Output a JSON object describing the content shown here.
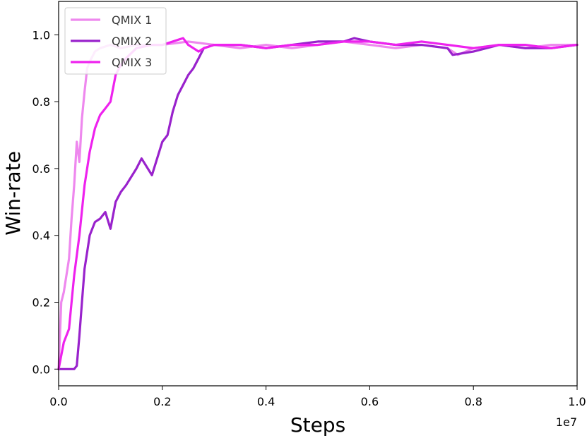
{
  "chart_data": {
    "type": "line",
    "title": "",
    "xlabel": "Steps",
    "ylabel": "Win-rate",
    "x_multiplier_label": "1e7",
    "xlim": [
      0.0,
      1.0
    ],
    "ylim": [
      -0.05,
      1.1
    ],
    "xticks": [
      0.0,
      0.2,
      0.4,
      0.6,
      0.8,
      1.0
    ],
    "xtick_labels": [
      "0.0",
      "0.2",
      "0.4",
      "0.6",
      "0.8",
      "1.0"
    ],
    "yticks": [
      0.0,
      0.2,
      0.4,
      0.6,
      0.8,
      1.0
    ],
    "ytick_labels": [
      "0.0",
      "0.2",
      "0.4",
      "0.6",
      "0.8",
      "1.0"
    ],
    "grid": false,
    "legend_position": "top-left",
    "series": [
      {
        "name": "QMIX 1",
        "color": "#ee88ee",
        "x": [
          0.0,
          0.005,
          0.01,
          0.02,
          0.025,
          0.03,
          0.035,
          0.04,
          0.045,
          0.05,
          0.055,
          0.06,
          0.07,
          0.08,
          0.1,
          0.12,
          0.15,
          0.2,
          0.25,
          0.3,
          0.35,
          0.4,
          0.45,
          0.5,
          0.55,
          0.6,
          0.65,
          0.7,
          0.75,
          0.77,
          0.8,
          0.85,
          0.9,
          0.95,
          1.0
        ],
        "y": [
          0.0,
          0.2,
          0.23,
          0.33,
          0.45,
          0.55,
          0.68,
          0.62,
          0.75,
          0.83,
          0.9,
          0.92,
          0.95,
          0.96,
          0.97,
          0.96,
          0.97,
          0.97,
          0.98,
          0.97,
          0.96,
          0.97,
          0.96,
          0.97,
          0.98,
          0.97,
          0.96,
          0.97,
          0.96,
          0.94,
          0.96,
          0.97,
          0.96,
          0.97,
          0.97
        ]
      },
      {
        "name": "QMIX 2",
        "color": "#9922cc",
        "x": [
          0.0,
          0.03,
          0.035,
          0.04,
          0.045,
          0.05,
          0.055,
          0.06,
          0.07,
          0.08,
          0.09,
          0.1,
          0.11,
          0.12,
          0.13,
          0.15,
          0.16,
          0.18,
          0.2,
          0.21,
          0.22,
          0.23,
          0.24,
          0.25,
          0.26,
          0.27,
          0.28,
          0.3,
          0.35,
          0.4,
          0.45,
          0.5,
          0.55,
          0.57,
          0.6,
          0.65,
          0.7,
          0.75,
          0.76,
          0.8,
          0.85,
          0.9,
          0.95,
          1.0
        ],
        "y": [
          0.0,
          0.0,
          0.01,
          0.1,
          0.2,
          0.3,
          0.35,
          0.4,
          0.44,
          0.45,
          0.47,
          0.42,
          0.5,
          0.53,
          0.55,
          0.6,
          0.63,
          0.58,
          0.68,
          0.7,
          0.77,
          0.82,
          0.85,
          0.88,
          0.9,
          0.93,
          0.96,
          0.97,
          0.97,
          0.96,
          0.97,
          0.98,
          0.98,
          0.99,
          0.98,
          0.97,
          0.97,
          0.96,
          0.94,
          0.95,
          0.97,
          0.96,
          0.96,
          0.97
        ]
      },
      {
        "name": "QMIX 3",
        "color": "#ee22ee",
        "x": [
          0.0,
          0.01,
          0.02,
          0.025,
          0.03,
          0.04,
          0.05,
          0.06,
          0.07,
          0.08,
          0.09,
          0.1,
          0.11,
          0.12,
          0.13,
          0.15,
          0.18,
          0.2,
          0.22,
          0.24,
          0.25,
          0.26,
          0.27,
          0.28,
          0.3,
          0.35,
          0.4,
          0.45,
          0.5,
          0.55,
          0.6,
          0.65,
          0.7,
          0.75,
          0.8,
          0.85,
          0.9,
          0.95,
          1.0
        ],
        "y": [
          0.0,
          0.08,
          0.12,
          0.2,
          0.28,
          0.4,
          0.55,
          0.65,
          0.72,
          0.76,
          0.78,
          0.8,
          0.88,
          0.91,
          0.93,
          0.96,
          0.97,
          0.97,
          0.98,
          0.99,
          0.97,
          0.96,
          0.95,
          0.96,
          0.97,
          0.97,
          0.96,
          0.97,
          0.97,
          0.98,
          0.98,
          0.97,
          0.98,
          0.97,
          0.96,
          0.97,
          0.97,
          0.96,
          0.97
        ]
      }
    ]
  }
}
